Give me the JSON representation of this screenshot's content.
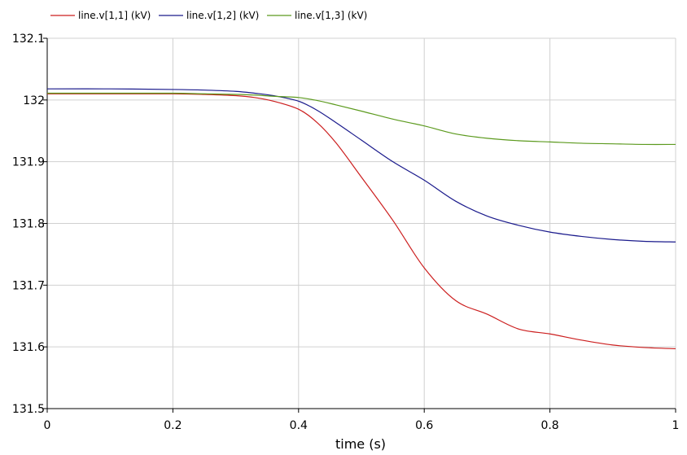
{
  "chart_data": {
    "type": "line",
    "title": "",
    "xlabel": "time (s)",
    "ylabel": "",
    "xlim": [
      0,
      1
    ],
    "ylim": [
      131.5,
      132.1
    ],
    "grid": true,
    "legend_position": "top-left",
    "x_ticks": [
      0,
      0.2,
      0.4,
      0.6,
      0.8,
      1
    ],
    "x_tick_labels": [
      "0",
      "0.2",
      "0.4",
      "0.6",
      "0.8",
      "1"
    ],
    "y_ticks": [
      131.5,
      131.6,
      131.7,
      131.8,
      131.9,
      132.0,
      132.1
    ],
    "y_tick_labels": [
      "131.5",
      "131.6",
      "131.7",
      "131.8",
      "131.9",
      "132",
      "132.1"
    ],
    "series": [
      {
        "name": "line.v[1,1] (kV)",
        "color": "#cc1f1f",
        "x": [
          0,
          0.1,
          0.2,
          0.25,
          0.3,
          0.33,
          0.36,
          0.4,
          0.43,
          0.46,
          0.5,
          0.55,
          0.6,
          0.65,
          0.7,
          0.75,
          0.8,
          0.85,
          0.9,
          0.95,
          1.0
        ],
        "y": [
          132.01,
          132.01,
          132.01,
          132.009,
          132.007,
          132.004,
          131.998,
          131.985,
          131.963,
          131.93,
          131.875,
          131.805,
          131.728,
          131.675,
          131.653,
          131.629,
          131.621,
          131.611,
          131.603,
          131.599,
          131.597
        ]
      },
      {
        "name": "line.v[1,2] (kV)",
        "color": "#1a1a8c",
        "x": [
          0,
          0.1,
          0.2,
          0.25,
          0.3,
          0.33,
          0.36,
          0.4,
          0.43,
          0.46,
          0.5,
          0.55,
          0.6,
          0.65,
          0.7,
          0.75,
          0.8,
          0.85,
          0.9,
          0.95,
          1.0
        ],
        "y": [
          132.018,
          132.018,
          132.017,
          132.016,
          132.014,
          132.011,
          132.007,
          131.998,
          131.983,
          131.963,
          131.935,
          131.9,
          131.87,
          131.836,
          131.812,
          131.797,
          131.786,
          131.779,
          131.774,
          131.771,
          131.77
        ]
      },
      {
        "name": "line.v[1,3] (kV)",
        "color": "#5c9a1e",
        "x": [
          0,
          0.1,
          0.2,
          0.25,
          0.3,
          0.33,
          0.36,
          0.4,
          0.43,
          0.46,
          0.5,
          0.55,
          0.6,
          0.65,
          0.7,
          0.75,
          0.8,
          0.85,
          0.9,
          0.95,
          1.0
        ],
        "y": [
          132.011,
          132.011,
          132.011,
          132.01,
          132.009,
          132.008,
          132.006,
          132.004,
          131.999,
          131.992,
          131.982,
          131.969,
          131.958,
          131.945,
          131.938,
          131.934,
          131.932,
          131.93,
          131.929,
          131.928,
          131.928
        ]
      }
    ]
  }
}
